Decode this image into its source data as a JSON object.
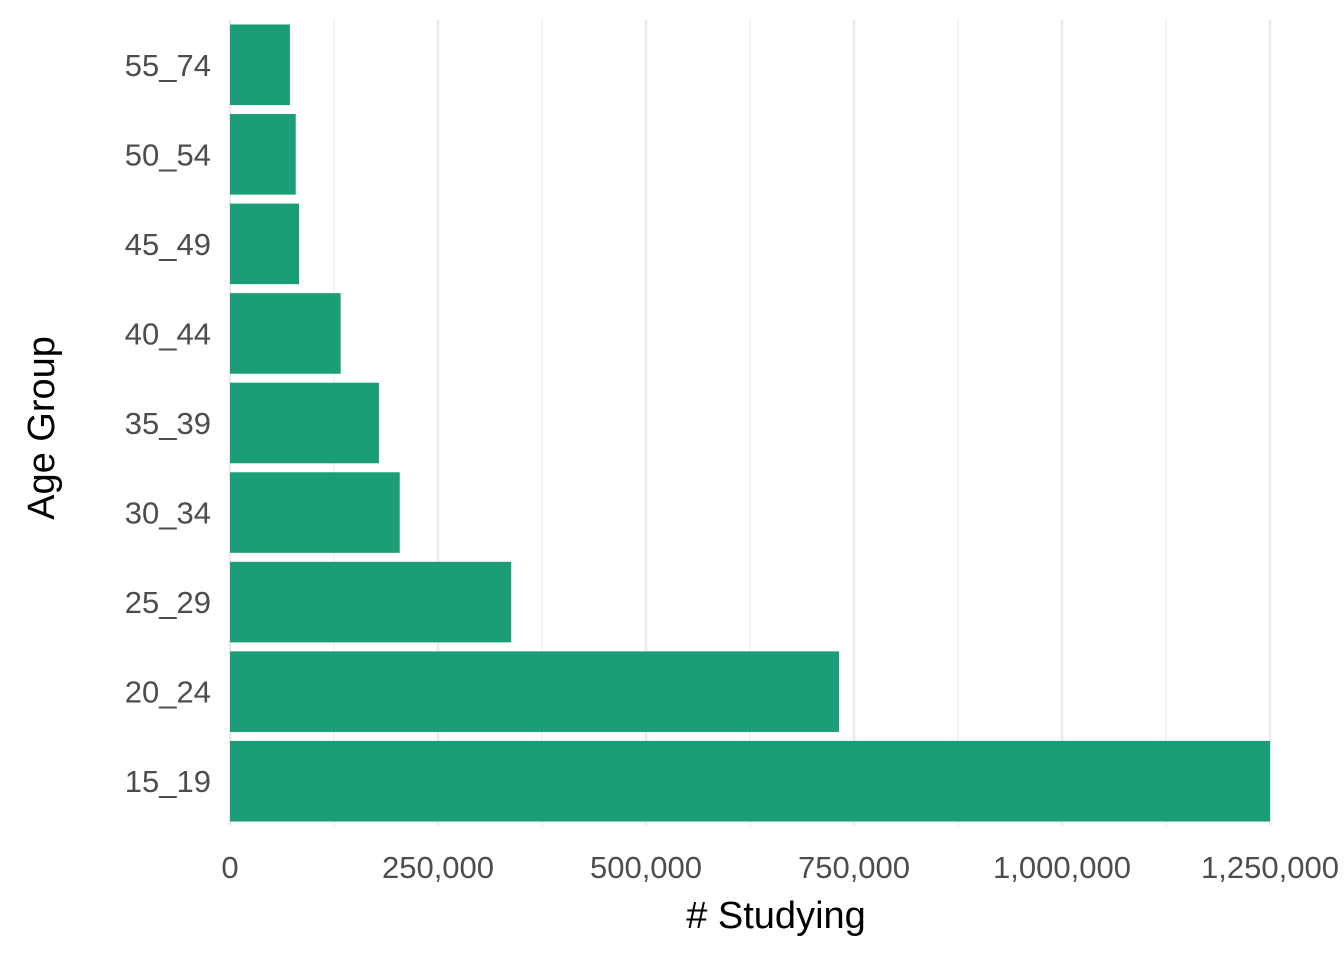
{
  "chart_data": {
    "type": "bar",
    "orientation": "horizontal",
    "categories": [
      "15_19",
      "20_24",
      "25_29",
      "30_34",
      "35_39",
      "40_44",
      "45_49",
      "50_54",
      "55_74"
    ],
    "values": [
      1250000,
      732000,
      338000,
      204000,
      179000,
      133000,
      83000,
      79000,
      72000
    ],
    "xlabel": "# Studying",
    "ylabel": "Age Group",
    "xlim": [
      0,
      1250000
    ],
    "xticks": [
      0,
      250000,
      500000,
      750000,
      1000000,
      1250000
    ],
    "xtick_labels": [
      "0",
      "250,000",
      "500,000",
      "750,000",
      "1,000,000",
      "1,250,000"
    ],
    "grid": true,
    "bar_color": "#1b9e77",
    "grid_color": "#ebebeb"
  }
}
